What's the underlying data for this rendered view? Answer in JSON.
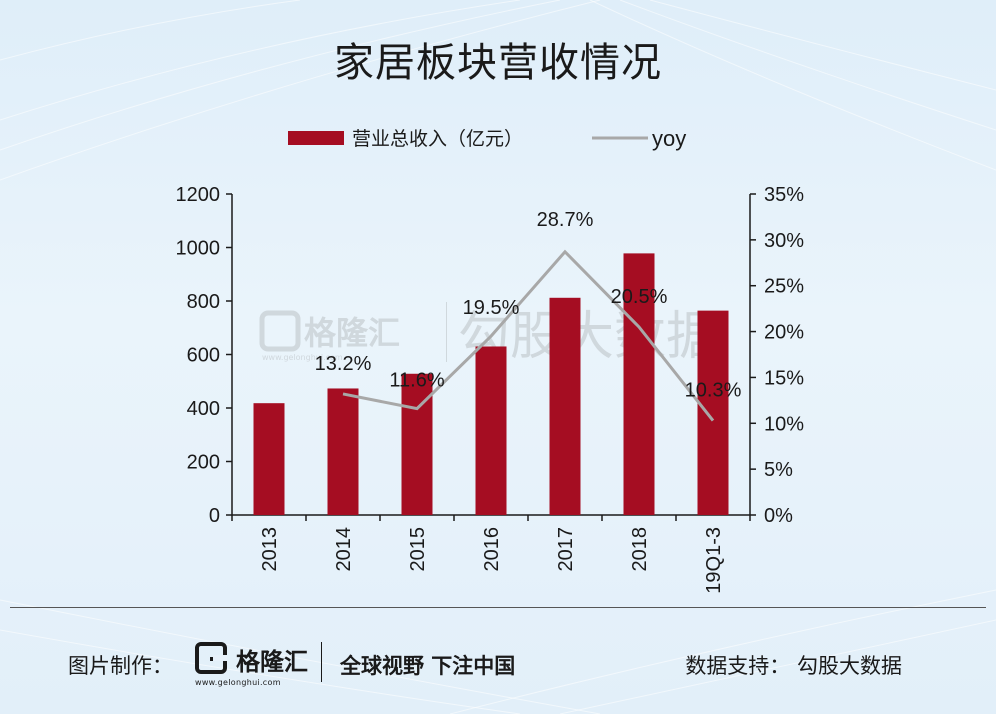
{
  "page": {
    "title": "家居板块营收情况"
  },
  "chart_data": {
    "type": "bar",
    "categories": [
      "2013",
      "2014",
      "2015",
      "2016",
      "2017",
      "2018",
      "19Q1-3"
    ],
    "series": [
      {
        "name": "营业总收入（亿元）",
        "type": "bar",
        "axis": "left",
        "values": [
          418,
          473,
          528,
          630,
          812,
          978,
          764
        ],
        "color": "#a50d22"
      },
      {
        "name": "yoy",
        "type": "line",
        "axis": "right",
        "values": [
          null,
          13.2,
          11.6,
          19.5,
          28.7,
          20.5,
          10.3
        ],
        "labels": [
          "",
          "13.2%",
          "11.6%",
          "19.5%",
          "28.7%",
          "20.5%",
          "10.3%"
        ],
        "color": "#a8a8a8"
      }
    ],
    "y_left": {
      "ticks": [
        "0",
        "200",
        "400",
        "600",
        "800",
        "1000",
        "1200"
      ],
      "range": [
        0,
        1200
      ]
    },
    "y_right": {
      "ticks": [
        "0%",
        "5%",
        "10%",
        "15%",
        "20%",
        "25%",
        "30%",
        "35%"
      ],
      "range": [
        0,
        35
      ]
    },
    "legend_position": "top",
    "grid": false
  },
  "watermark": {
    "brand": "格隆汇",
    "url": "www.gelonghui.com",
    "text": "勾股大数据"
  },
  "footer": {
    "credit_label": "图片制作：",
    "logo_text": "格隆汇",
    "logo_url": "www.gelonghui.com",
    "slogan": "全球视野 下注中国",
    "support": "数据支持：  勾股大数据"
  }
}
